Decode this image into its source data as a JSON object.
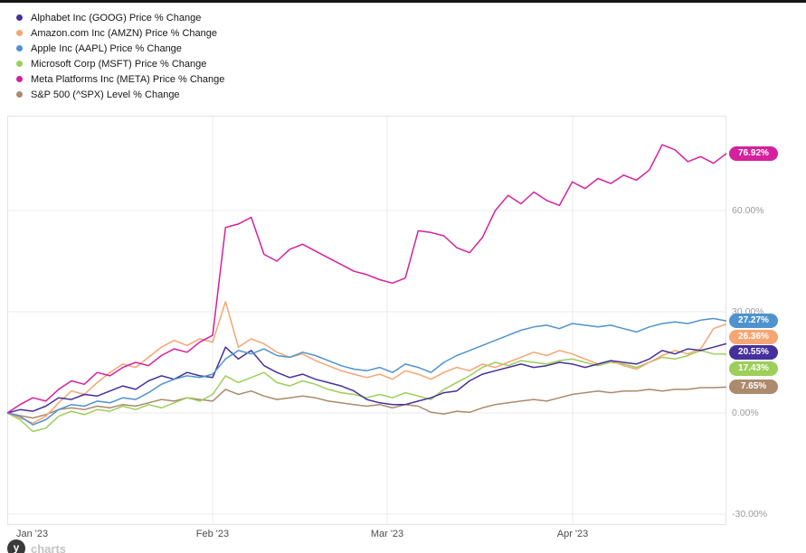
{
  "page": {
    "background": "#ffffff",
    "top_bar_color": "#141414"
  },
  "axes": {
    "y_tick_labels": [
      "60.00%",
      "30.00%",
      "0.00%",
      "-30.00%"
    ],
    "x_tick_labels": [
      "Jan '23",
      "Feb '23",
      "Mar '23",
      "Apr '23"
    ]
  },
  "footer": {
    "brand": "y",
    "brand_word": "charts"
  },
  "chart_data": {
    "type": "line",
    "legend_position": "top-left",
    "grid": true,
    "y_axis_range": [
      -33,
      88
    ],
    "y_ticks": [
      {
        "label": "60.00%",
        "value": 60
      },
      {
        "label": "30.00%",
        "value": 30
      },
      {
        "label": "0.00%",
        "value": 0
      },
      {
        "label": "-30.00%",
        "value": -30
      }
    ],
    "x_ticks": [
      {
        "label": "Jan '23",
        "pos": 0
      },
      {
        "label": "Feb '23",
        "pos": 0.2855
      },
      {
        "label": "Mar '23",
        "pos": 0.5283
      },
      {
        "label": "Apr '23",
        "pos": 0.7862
      }
    ],
    "series": [
      {
        "ticker": "GOOG",
        "legend_label": "Alphabet Inc (GOOG) Price % Change",
        "color": "#46319b",
        "end_label": "20.55%",
        "end_value": 20.55,
        "values": [
          0,
          1,
          0.5,
          2,
          4.5,
          4,
          5.5,
          5,
          6.5,
          8,
          7,
          9.5,
          11,
          10,
          12,
          11,
          10.5,
          19.5,
          16,
          18.5,
          14,
          12,
          10.5,
          11.5,
          10,
          9,
          8,
          6.5,
          4,
          3,
          2.5,
          2.5,
          3.5,
          4.5,
          6,
          6.5,
          9.5,
          11.5,
          12.5,
          13.5,
          14.5,
          13.5,
          14,
          15,
          14.5,
          13.5,
          14.5,
          15.5,
          15,
          14.5,
          16,
          18.5,
          17.5,
          19,
          18.5,
          19.5,
          20.55
        ]
      },
      {
        "ticker": "AMZN",
        "legend_label": "Amazon.com Inc (AMZN) Price % Change",
        "color": "#f5a673",
        "end_label": "26.36%",
        "end_value": 26.36,
        "values": [
          0,
          -1.5,
          -3,
          -1,
          3,
          6.5,
          5.5,
          9,
          12,
          14.5,
          13.5,
          16.5,
          19.5,
          21.5,
          20,
          22,
          21,
          33,
          19.5,
          22,
          20.5,
          18,
          16.5,
          17.5,
          15.5,
          14,
          12.5,
          11.5,
          10.5,
          11.5,
          10,
          12.5,
          11.5,
          10,
          12,
          13.5,
          12.5,
          14.5,
          13.5,
          15,
          16.5,
          18,
          17,
          18.5,
          17.5,
          16,
          14.5,
          15.5,
          14,
          13,
          15,
          17,
          18.5,
          17.5,
          19,
          25,
          26.36
        ]
      },
      {
        "ticker": "AAPL",
        "legend_label": "Apple Inc (AAPL) Price % Change",
        "color": "#4f93ce",
        "end_label": "27.27%",
        "end_value": 27.27,
        "values": [
          0,
          -1,
          -3.5,
          -2,
          1,
          2.5,
          2,
          3.5,
          3,
          4.5,
          4,
          6,
          8.5,
          10,
          11,
          10.5,
          11.5,
          16,
          18.5,
          17.5,
          19,
          17,
          16.5,
          18,
          17,
          15.5,
          14,
          13,
          12.5,
          13.5,
          12,
          14.5,
          13.5,
          12,
          15,
          17,
          18.5,
          20,
          21.5,
          23,
          24.5,
          25.5,
          26,
          25,
          26.5,
          26,
          25.5,
          26,
          25,
          24,
          25.5,
          26.5,
          27,
          26.5,
          27.5,
          28,
          27.27
        ]
      },
      {
        "ticker": "MSFT",
        "legend_label": "Microsoft Corp (MSFT) Price % Change",
        "color": "#9dce5a",
        "end_label": "17.43%",
        "end_value": 17.43,
        "values": [
          0,
          -2,
          -5.5,
          -4.5,
          -1,
          0.5,
          -0.5,
          1,
          0.5,
          2,
          1,
          2.5,
          1.5,
          3,
          4.5,
          3.5,
          5.5,
          11,
          9,
          10.5,
          12,
          9,
          8,
          9.5,
          8.5,
          7,
          6,
          5.5,
          4.5,
          5.5,
          4.5,
          6,
          5,
          4,
          7,
          9,
          11,
          13.5,
          15,
          14,
          15.5,
          15,
          14.5,
          15.5,
          16,
          15,
          14,
          15,
          14.5,
          13.5,
          15,
          16.5,
          16,
          17,
          18.5,
          17.5,
          17.43
        ]
      },
      {
        "ticker": "META",
        "legend_label": "Meta Platforms Inc (META) Price % Change",
        "color": "#d4219e",
        "end_label": "76.92%",
        "end_value": 76.92,
        "values": [
          0,
          2.5,
          4.5,
          3.5,
          7,
          9.5,
          8.5,
          12,
          11,
          13.5,
          15,
          14,
          17,
          19,
          18,
          21,
          23,
          55,
          56,
          58,
          47,
          45,
          48.5,
          50,
          48,
          46,
          44,
          42,
          41,
          39.5,
          38.5,
          40,
          54,
          53.5,
          52.5,
          49,
          47.5,
          52,
          60,
          64.5,
          62,
          65.5,
          63,
          61.5,
          68.5,
          66.5,
          69.5,
          68,
          70.5,
          69,
          72,
          79.5,
          78,
          74.5,
          76,
          74,
          76.92
        ]
      },
      {
        "ticker": "SPX",
        "legend_label": "S&P 500 (^SPX) Level % Change",
        "color": "#ab8a6d",
        "end_label": "7.65%",
        "end_value": 7.65,
        "values": [
          0,
          -0.8,
          -1.5,
          -0.5,
          1,
          1.5,
          1,
          2,
          1.5,
          2.5,
          2,
          3,
          4,
          3.5,
          4.5,
          4,
          3.5,
          7,
          5.5,
          6.5,
          5,
          4,
          4.5,
          5,
          4.5,
          3.5,
          3,
          2.5,
          2,
          2.5,
          1.5,
          2.5,
          2,
          0.2,
          -0.3,
          0.5,
          0.2,
          1.5,
          2.5,
          3,
          3.5,
          4,
          3.5,
          4.5,
          5.5,
          6,
          6.5,
          6,
          6.5,
          6.5,
          7,
          6.5,
          7,
          7,
          7.5,
          7.5,
          7.65
        ]
      }
    ]
  }
}
